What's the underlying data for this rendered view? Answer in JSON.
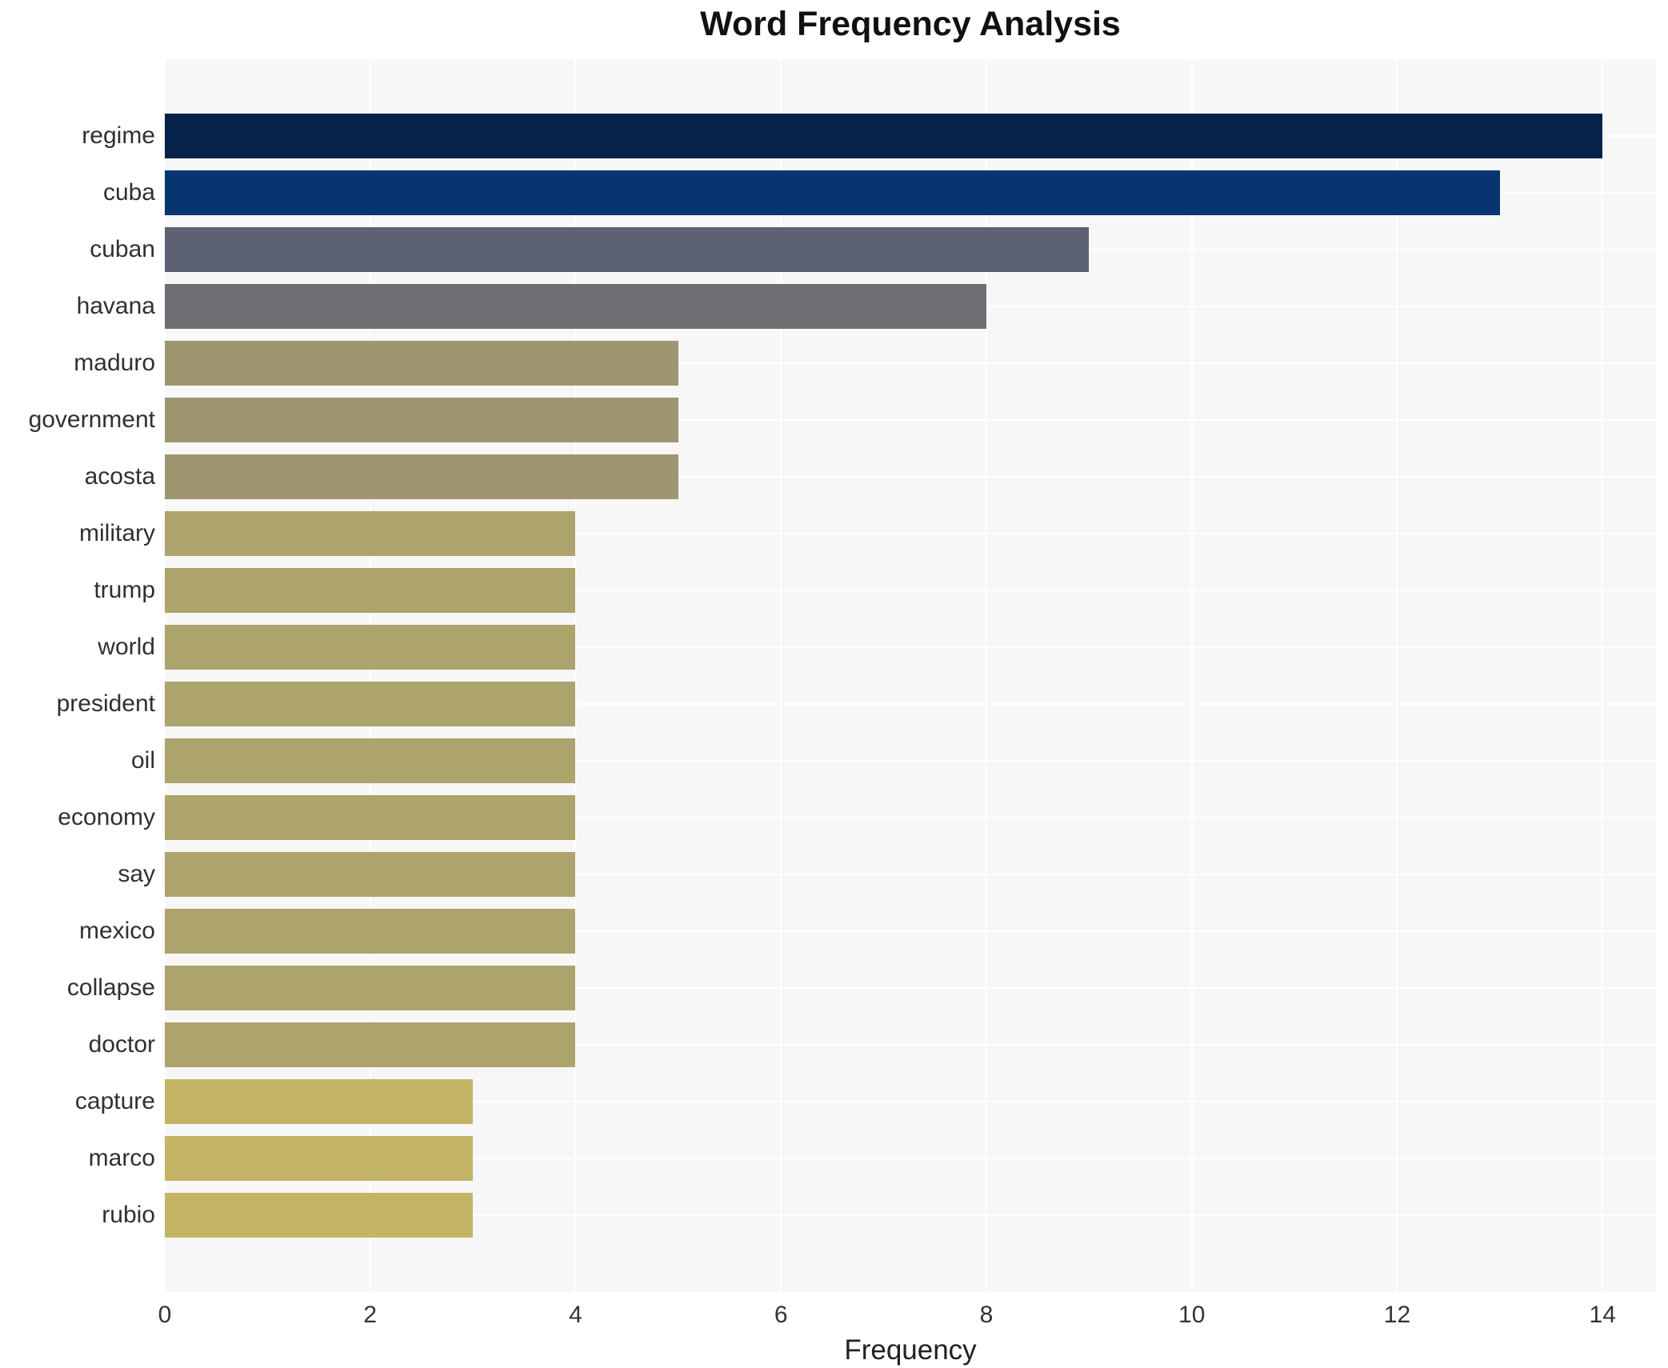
{
  "title": "Word Frequency Analysis",
  "chart_data": {
    "type": "bar",
    "orientation": "horizontal",
    "title": "Word Frequency Analysis",
    "xlabel": "Frequency",
    "ylabel": "",
    "categories": [
      "regime",
      "cuba",
      "cuban",
      "havana",
      "maduro",
      "government",
      "acosta",
      "military",
      "trump",
      "world",
      "president",
      "oil",
      "economy",
      "say",
      "mexico",
      "collapse",
      "doctor",
      "capture",
      "marco",
      "rubio"
    ],
    "values": [
      14,
      13,
      9,
      8,
      5,
      5,
      5,
      4,
      4,
      4,
      4,
      4,
      4,
      4,
      4,
      4,
      4,
      3,
      3,
      3
    ],
    "bar_colors": [
      "#04224c",
      "#083571",
      "#5c6271",
      "#6d6f73",
      "#9e9670",
      "#9e9670",
      "#9e9670",
      "#ada36d",
      "#ada36d",
      "#ada36d",
      "#ada36d",
      "#ada36d",
      "#ada36d",
      "#ada36d",
      "#ada36d",
      "#ada36d",
      "#ada36d",
      "#c4b566",
      "#c4b566",
      "#c4b566"
    ],
    "x_ticks": [
      0,
      2,
      4,
      6,
      8,
      10,
      12,
      14
    ],
    "xlim": [
      0,
      14.52
    ],
    "grid": true,
    "grid_color": "#ffffff",
    "plot_background": "#f7f7f7",
    "page_background": "#ffffff",
    "legend": "none"
  }
}
